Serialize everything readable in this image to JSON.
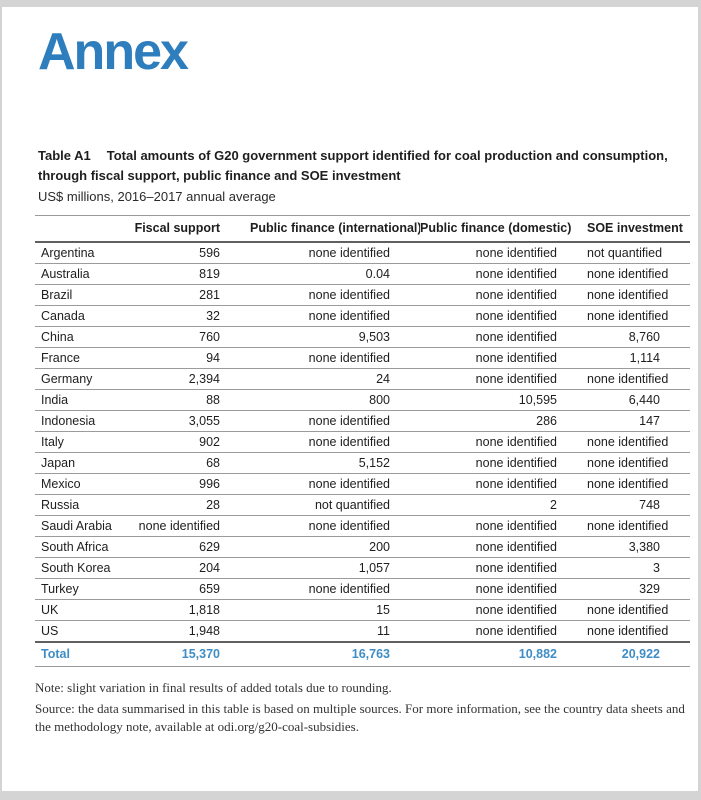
{
  "page": {
    "section_title": "Annex"
  },
  "table": {
    "label": "Table A1",
    "title": "Total amounts of G20 government support identified for coal production and consumption,\nthrough fiscal support, public finance and SOE investment",
    "subtitle": "US$ millions, 2016–2017 annual average",
    "columns": [
      "",
      "Fiscal support",
      "Public finance (international)",
      "Public finance (domestic)",
      "SOE investment"
    ],
    "rows": [
      {
        "country": "Argentina",
        "values": [
          "596",
          "none identified",
          "none identified",
          "not quantified"
        ]
      },
      {
        "country": "Australia",
        "values": [
          "819",
          "0.04",
          "none identified",
          "none identified"
        ]
      },
      {
        "country": "Brazil",
        "values": [
          "281",
          "none identified",
          "none identified",
          "none identified"
        ]
      },
      {
        "country": "Canada",
        "values": [
          "32",
          "none identified",
          "none identified",
          "none identified"
        ]
      },
      {
        "country": "China",
        "values": [
          "760",
          "9,503",
          "none identified",
          "8,760"
        ]
      },
      {
        "country": "France",
        "values": [
          "94",
          "none identified",
          "none identified",
          "1,114"
        ]
      },
      {
        "country": "Germany",
        "values": [
          "2,394",
          "24",
          "none identified",
          "none identified"
        ]
      },
      {
        "country": "India",
        "values": [
          "88",
          "800",
          "10,595",
          "6,440"
        ]
      },
      {
        "country": "Indonesia",
        "values": [
          "3,055",
          "none identified",
          "286",
          "147"
        ]
      },
      {
        "country": "Italy",
        "values": [
          "902",
          "none identified",
          "none identified",
          "none identified"
        ]
      },
      {
        "country": "Japan",
        "values": [
          "68",
          "5,152",
          "none identified",
          "none identified"
        ]
      },
      {
        "country": "Mexico",
        "values": [
          "996",
          "none identified",
          "none identified",
          "none identified"
        ]
      },
      {
        "country": "Russia",
        "values": [
          "28",
          "not quantified",
          "2",
          "748"
        ]
      },
      {
        "country": "Saudi Arabia",
        "values": [
          "none identified",
          "none identified",
          "none identified",
          "none identified"
        ]
      },
      {
        "country": "South Africa",
        "values": [
          "629",
          "200",
          "none identified",
          "3,380"
        ]
      },
      {
        "country": "South Korea",
        "values": [
          "204",
          "1,057",
          "none identified",
          "3"
        ]
      },
      {
        "country": "Turkey",
        "values": [
          "659",
          "none identified",
          "none identified",
          "329"
        ]
      },
      {
        "country": "UK",
        "values": [
          "1,818",
          "15",
          "none identified",
          "none identified"
        ]
      },
      {
        "country": "US",
        "values": [
          "1,948",
          "11",
          "none identified",
          "none identified"
        ]
      }
    ],
    "total": {
      "label": "Total",
      "values": [
        "15,370",
        "16,763",
        "10,882",
        "20,922"
      ]
    },
    "accent_color": "#3f8dc5"
  },
  "notes": {
    "note": "Note: slight variation in final results of added totals due to rounding.",
    "source": "Source: the data summarised in this table is based on multiple sources. For more information, see the country data sheets and\nthe methodology note, available at odi.org/g20-coal-subsidies."
  }
}
